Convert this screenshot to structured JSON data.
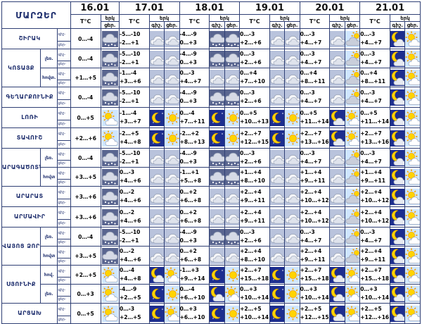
{
  "header": {
    "corner": "ՄԱՐԶԵՐ",
    "dates": [
      "16.01",
      "17.01",
      "18.01",
      "19.01",
      "20.01",
      "21.01"
    ],
    "tc": "T°C",
    "col_icon": "երկ",
    "col_icon_night": "գիշ.",
    "col_icon_day": "ցեր."
  },
  "row_labels": {
    "night": "գիշ-",
    "day": "ցեր-"
  },
  "regions": [
    {
      "name": "ՇԻՐԱԿ",
      "part": "",
      "d16": {
        "temp": "0…-4",
        "icon": "snow"
      },
      "days": [
        {
          "night": "-5…-10",
          "day": "-2…+1",
          "icon_night": "cloud",
          "icon_day": "cloud"
        },
        {
          "night": "-4…-9",
          "day": "0…+3",
          "icon_night": "snow",
          "icon_day": "snow"
        },
        {
          "night": "0…-3",
          "day": "+2…+6",
          "icon_night": "cloud",
          "icon_day": "cloud"
        },
        {
          "night": "0…-3",
          "day": "+4…+7",
          "icon_night": "cloud",
          "icon_day": "partly-sun"
        },
        {
          "night": "0…-3",
          "day": "+4…+7",
          "icon_night": "moon-cloud",
          "icon_day": "sun-cloud"
        }
      ]
    },
    {
      "name": "ԿՈՏԱՅՔ",
      "part": "լեռ.",
      "d16": {
        "temp": "0…-4",
        "icon": "snow"
      },
      "days": [
        {
          "night": "-5…-10",
          "day": "-2…+1",
          "icon_night": "cloud",
          "icon_day": "cloud"
        },
        {
          "night": "-4…-9",
          "day": "0…+3",
          "icon_night": "snow",
          "icon_day": "snow"
        },
        {
          "night": "0…-3",
          "day": "+2…+6",
          "icon_night": "cloud",
          "icon_day": "cloud"
        },
        {
          "night": "0…-3",
          "day": "+4…+7",
          "icon_night": "cloud",
          "icon_day": "partly-sun"
        },
        {
          "night": "0…-3",
          "day": "+4…+7",
          "icon_night": "moon-cloud",
          "icon_day": "sun-cloud"
        }
      ]
    },
    {
      "name": "",
      "part": "հովտ.",
      "d16": {
        "temp": "+1…+5",
        "icon": "snow"
      },
      "days": [
        {
          "night": "-1…-4",
          "day": "+3…+6",
          "icon_night": "cloud",
          "icon_day": "cloud"
        },
        {
          "night": "0…-3",
          "day": "+4…+7",
          "icon_night": "cloud",
          "icon_day": "cloud"
        },
        {
          "night": "0…+4",
          "day": "+7…+10",
          "icon_night": "cloud",
          "icon_day": "cloud"
        },
        {
          "night": "0…+4",
          "day": "+8…+11",
          "icon_night": "cloud",
          "icon_day": "partly-sun"
        },
        {
          "night": "0…+4",
          "day": "+8…+11",
          "icon_night": "moon-cloud",
          "icon_day": "sun-cloud"
        }
      ]
    },
    {
      "name": "ԳԵՂԱՐՔՈՒՆԻՔ",
      "part": "",
      "d16": {
        "temp": "0…-4",
        "icon": "snow"
      },
      "days": [
        {
          "night": "-5…-10",
          "day": "-2…+1",
          "icon_night": "cloud",
          "icon_day": "cloud"
        },
        {
          "night": "-4…-9",
          "day": "0…+3",
          "icon_night": "snow",
          "icon_day": "snow"
        },
        {
          "night": "0…-3",
          "day": "+2…+6",
          "icon_night": "cloud",
          "icon_day": "cloud"
        },
        {
          "night": "0…-3",
          "day": "+4…+7",
          "icon_night": "cloud",
          "icon_day": "partly-sun"
        },
        {
          "night": "0…-3",
          "day": "+4…+7",
          "icon_night": "moon-cloud",
          "icon_day": "sun-cloud"
        }
      ]
    },
    {
      "name": "ԼՈՌԻ",
      "part": "",
      "d16": {
        "temp": "0…+5",
        "icon": "sun-cloud"
      },
      "days": [
        {
          "night": "-1…-4",
          "day": "+3…+7",
          "icon_night": "moon",
          "icon_day": "sun"
        },
        {
          "night": "0…-4",
          "day": "+7…+11",
          "icon_night": "moon",
          "icon_day": "sun"
        },
        {
          "night": "0…+5",
          "day": "+10…+13",
          "icon_night": "moon",
          "icon_day": "sun"
        },
        {
          "night": "0…+5",
          "day": "+11…+14",
          "icon_night": "moon-cloud",
          "icon_day": "sun-cloud"
        },
        {
          "night": "0…+5",
          "day": "+11…+14",
          "icon_night": "moon-cloud",
          "icon_day": "sun-cloud"
        }
      ]
    },
    {
      "name": "ՏԱՎՈՒՇ",
      "part": "",
      "d16": {
        "temp": "+2…+6",
        "icon": "sun-cloud"
      },
      "days": [
        {
          "night": "-2…+5",
          "day": "+4…+8",
          "icon_night": "moon",
          "icon_day": "sun"
        },
        {
          "night": "-2…+2",
          "day": "+8…+13",
          "icon_night": "moon",
          "icon_day": "sun"
        },
        {
          "night": "+2…+7",
          "day": "+12…+15",
          "icon_night": "moon",
          "icon_day": "sun"
        },
        {
          "night": "+2…+7",
          "day": "+13…+16",
          "icon_night": "moon-cloud",
          "icon_day": "sun-cloud"
        },
        {
          "night": "+2…+7",
          "day": "+13…+16",
          "icon_night": "moon-cloud",
          "icon_day": "sun-cloud"
        }
      ]
    },
    {
      "name": "ԱՐԱԳԱԾՈՏՆ",
      "part": "լեռ.",
      "d16": {
        "temp": "0…-4",
        "icon": "snow"
      },
      "days": [
        {
          "night": "-5…-10",
          "day": "-2…+1",
          "icon_night": "cloud",
          "icon_day": "cloud"
        },
        {
          "night": "-4…-9",
          "day": "0…+3",
          "icon_night": "snow",
          "icon_day": "snow"
        },
        {
          "night": "0…-3",
          "day": "+2…+6",
          "icon_night": "cloud",
          "icon_day": "cloud"
        },
        {
          "night": "0…-3",
          "day": "+4…+7",
          "icon_night": "cloud",
          "icon_day": "partly-sun"
        },
        {
          "night": "0…-3",
          "day": "+4…+7",
          "icon_night": "moon-cloud",
          "icon_day": "sun-cloud"
        }
      ]
    },
    {
      "name": "",
      "part": "հովտ",
      "d16": {
        "temp": "+3…+5",
        "icon": "snow"
      },
      "days": [
        {
          "night": "0…-3",
          "day": "+4…+6",
          "icon_night": "cloud",
          "icon_day": "cloud"
        },
        {
          "night": "-1…+1",
          "day": "+5…+8",
          "icon_night": "snow",
          "icon_day": "snow"
        },
        {
          "night": "+1…+4",
          "day": "+8…+10",
          "icon_night": "cloud",
          "icon_day": "cloud"
        },
        {
          "night": "+1…+4",
          "day": "+9…+11",
          "icon_night": "cloud",
          "icon_day": "partly-sun"
        },
        {
          "night": "+1…+4",
          "day": "+9…+11",
          "icon_night": "moon-cloud",
          "icon_day": "sun-cloud"
        }
      ]
    },
    {
      "name": "ԱՐԱՐԱՏ",
      "part": "",
      "d16": {
        "temp": "+3…+6",
        "icon": "snow"
      },
      "days": [
        {
          "night": "0…-2",
          "day": "+4…+6",
          "icon_night": "cloud",
          "icon_day": "cloud"
        },
        {
          "night": "0…+2",
          "day": "+6…+8",
          "icon_night": "cloud",
          "icon_day": "cloud"
        },
        {
          "night": "+2…+4",
          "day": "+9…+11",
          "icon_night": "cloud",
          "icon_day": "cloud"
        },
        {
          "night": "+2…+4",
          "day": "+10…+12",
          "icon_night": "cloud",
          "icon_day": "partly-sun"
        },
        {
          "night": "+2…+4",
          "day": "+10…+12",
          "icon_night": "moon-cloud",
          "icon_day": "sun-cloud"
        }
      ]
    },
    {
      "name": "ԱՐՄԱՎԻՐ",
      "part": "",
      "d16": {
        "temp": "+3…+6",
        "icon": "snow"
      },
      "days": [
        {
          "night": "0…-2",
          "day": "+4…+6",
          "icon_night": "cloud",
          "icon_day": "cloud"
        },
        {
          "night": "0…+2",
          "day": "+6…+8",
          "icon_night": "cloud",
          "icon_day": "cloud"
        },
        {
          "night": "+2…+4",
          "day": "+9…+11",
          "icon_night": "cloud",
          "icon_day": "cloud"
        },
        {
          "night": "+2…+4",
          "day": "+10…+12",
          "icon_night": "cloud",
          "icon_day": "partly-sun"
        },
        {
          "night": "+2…+4",
          "day": "+10…+12",
          "icon_night": "moon-cloud",
          "icon_day": "sun-cloud"
        }
      ]
    },
    {
      "name": "ՎԱՅՈՑ ՁՈՐ",
      "part": "լեռ.",
      "d16": {
        "temp": "0…-4",
        "icon": "snow"
      },
      "days": [
        {
          "night": "-5…-10",
          "day": "-2…+1",
          "icon_night": "cloud",
          "icon_day": "cloud"
        },
        {
          "night": "-4…-9",
          "day": "0…+3",
          "icon_night": "snow",
          "icon_day": "snow"
        },
        {
          "night": "0…-3",
          "day": "+2…+6",
          "icon_night": "cloud",
          "icon_day": "cloud"
        },
        {
          "night": "0…-3",
          "day": "+4…+7",
          "icon_night": "cloud",
          "icon_day": "partly-sun"
        },
        {
          "night": "0…-3",
          "day": "+4…+7",
          "icon_night": "moon-cloud",
          "icon_day": "sun-cloud"
        }
      ]
    },
    {
      "name": "",
      "part": "հովտ",
      "d16": {
        "temp": "+3…+5",
        "icon": "snow"
      },
      "days": [
        {
          "night": "0…-2",
          "day": "+4…+6",
          "icon_night": "cloud",
          "icon_day": "cloud"
        },
        {
          "night": "0…+2",
          "day": "+6…+8",
          "icon_night": "cloud",
          "icon_day": "cloud"
        },
        {
          "night": "+2…+4",
          "day": "+8…+10",
          "icon_night": "cloud",
          "icon_day": "cloud"
        },
        {
          "night": "+2…+4",
          "day": "+9…+11",
          "icon_night": "cloud",
          "icon_day": "partly-sun"
        },
        {
          "night": "+2…+4",
          "day": "+9…+11",
          "icon_night": "moon-cloud",
          "icon_day": "sun-cloud"
        }
      ]
    },
    {
      "name": "ՍՅՈՒՆԻՔ",
      "part": "հով.",
      "d16": {
        "temp": "+2…+5",
        "icon": "sun-cloud"
      },
      "days": [
        {
          "night": "0…-4",
          "day": "+4…+8",
          "icon_night": "moon-cloud",
          "icon_day": "sun-cloud"
        },
        {
          "night": "-1…+3",
          "day": "+9…+14",
          "icon_night": "moon",
          "icon_day": "sun"
        },
        {
          "night": "+2…+7",
          "day": "+15…+18",
          "icon_night": "moon",
          "icon_day": "sun"
        },
        {
          "night": "+2…+7",
          "day": "+15…+18",
          "icon_night": "moon-cloud",
          "icon_day": "sun-cloud"
        },
        {
          "night": "+2…+7",
          "day": "+15…+18",
          "icon_night": "moon-cloud",
          "icon_day": "sun-cloud"
        }
      ]
    },
    {
      "name": "",
      "part": "լեռ.",
      "d16": {
        "temp": "0…+3",
        "icon": "sun-cloud"
      },
      "days": [
        {
          "night": "-4…-9",
          "day": "+2…+5",
          "icon_night": "moon",
          "icon_day": "sun"
        },
        {
          "night": "0…-4",
          "day": "+6…+10",
          "icon_night": "moon-cloud",
          "icon_day": "sun-cloud"
        },
        {
          "night": "0…+3",
          "day": "+10…+14",
          "icon_night": "moon",
          "icon_day": "sun"
        },
        {
          "night": "0…+3",
          "day": "+10…+14",
          "icon_night": "moon-cloud",
          "icon_day": "sun-cloud"
        },
        {
          "night": "0…+3",
          "day": "+10…+14",
          "icon_night": "moon-cloud",
          "icon_day": "sun-cloud"
        }
      ]
    },
    {
      "name": "ԱՐՑԱԽ",
      "part": "",
      "d16": {
        "temp": "0…+5",
        "icon": "sun-cloud"
      },
      "days": [
        {
          "night": "0…-3",
          "day": "+2…+5",
          "icon_night": "moon",
          "icon_day": "sun-cloud"
        },
        {
          "night": "0…+3",
          "day": "+6…+10",
          "icon_night": "moon",
          "icon_day": "sun"
        },
        {
          "night": "+2…+5",
          "day": "+10…+14",
          "icon_night": "moon",
          "icon_day": "sun"
        },
        {
          "night": "+2…+5",
          "day": "+12…+15",
          "icon_night": "moon-cloud",
          "icon_day": "sun-cloud"
        },
        {
          "night": "+2…+5",
          "day": "+12…+16",
          "icon_night": "moon-cloud",
          "icon_day": "sun-cloud"
        }
      ]
    }
  ]
}
